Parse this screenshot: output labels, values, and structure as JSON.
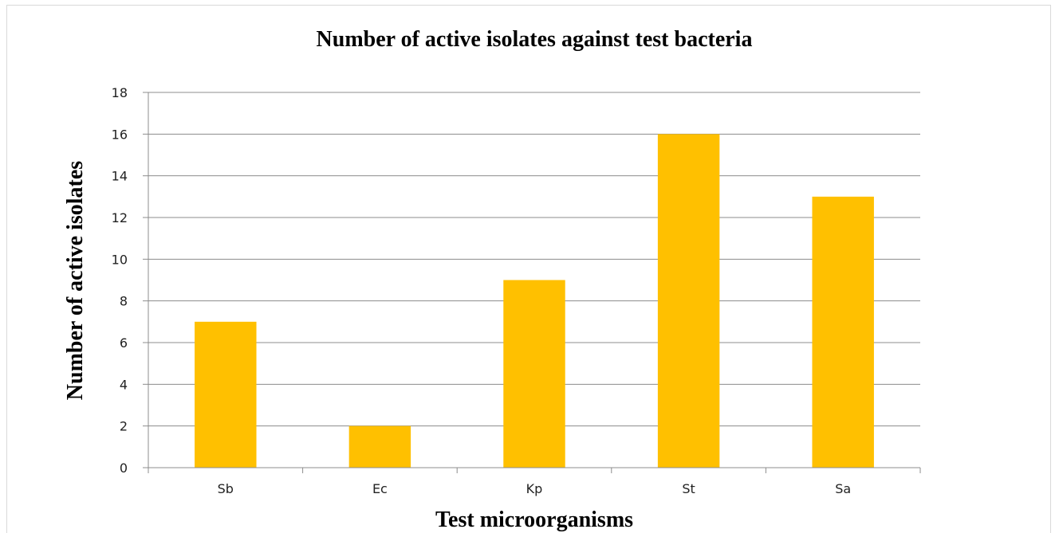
{
  "chart_data": {
    "type": "bar",
    "title": "Number of active isolates against test bacteria",
    "xlabel": "Test microorganisms",
    "ylabel": "Number of active isolates",
    "categories": [
      "Sb",
      "Ec",
      "Kp",
      "St",
      "Sa"
    ],
    "values": [
      7,
      2,
      9,
      16,
      13
    ],
    "ylim": [
      0,
      18
    ],
    "yticks": [
      0,
      2,
      4,
      6,
      8,
      10,
      12,
      14,
      16,
      18
    ],
    "grid": true,
    "legend": "none",
    "bar_color": "#FFC000"
  }
}
